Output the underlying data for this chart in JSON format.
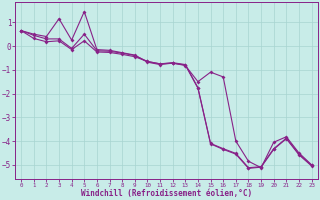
{
  "xlabel": "Windchill (Refroidissement éolien,°C)",
  "background_color": "#c8ece8",
  "grid_color": "#a8d4d0",
  "line_color": "#882288",
  "xlim_min": -0.5,
  "xlim_max": 23.5,
  "ylim_min": -5.6,
  "ylim_max": 1.85,
  "yticks": [
    1,
    0,
    -1,
    -2,
    -3,
    -4,
    -5
  ],
  "xticks": [
    0,
    1,
    2,
    3,
    4,
    5,
    6,
    7,
    8,
    9,
    10,
    11,
    12,
    13,
    14,
    15,
    16,
    17,
    18,
    19,
    20,
    21,
    22,
    23
  ],
  "sx": [
    0,
    1,
    2,
    3,
    4,
    5,
    6,
    7,
    8,
    9,
    10,
    11,
    12,
    13,
    14,
    15,
    16,
    17,
    18,
    19,
    20,
    21,
    22,
    23
  ],
  "s1y": [
    0.65,
    0.5,
    0.4,
    1.15,
    0.25,
    1.45,
    -0.15,
    -0.18,
    -0.28,
    -0.38,
    -0.68,
    -0.78,
    -0.72,
    -0.82,
    -1.5,
    -1.1,
    -1.3,
    -4.0,
    -4.85,
    -5.12,
    -4.05,
    -3.82,
    -4.5,
    -5.0
  ],
  "s2y": [
    0.65,
    0.45,
    0.3,
    0.3,
    -0.1,
    0.5,
    -0.2,
    -0.22,
    -0.3,
    -0.4,
    -0.65,
    -0.75,
    -0.7,
    -0.78,
    -1.75,
    -4.1,
    -4.32,
    -4.52,
    -5.12,
    -5.08,
    -4.32,
    -3.88,
    -4.55,
    -5.02
  ],
  "s3y": [
    0.65,
    0.32,
    0.18,
    0.22,
    -0.15,
    0.22,
    -0.25,
    -0.27,
    -0.35,
    -0.45,
    -0.65,
    -0.75,
    -0.72,
    -0.8,
    -1.78,
    -4.12,
    -4.35,
    -4.55,
    -5.15,
    -5.1,
    -4.35,
    -3.9,
    -4.58,
    -5.05
  ]
}
